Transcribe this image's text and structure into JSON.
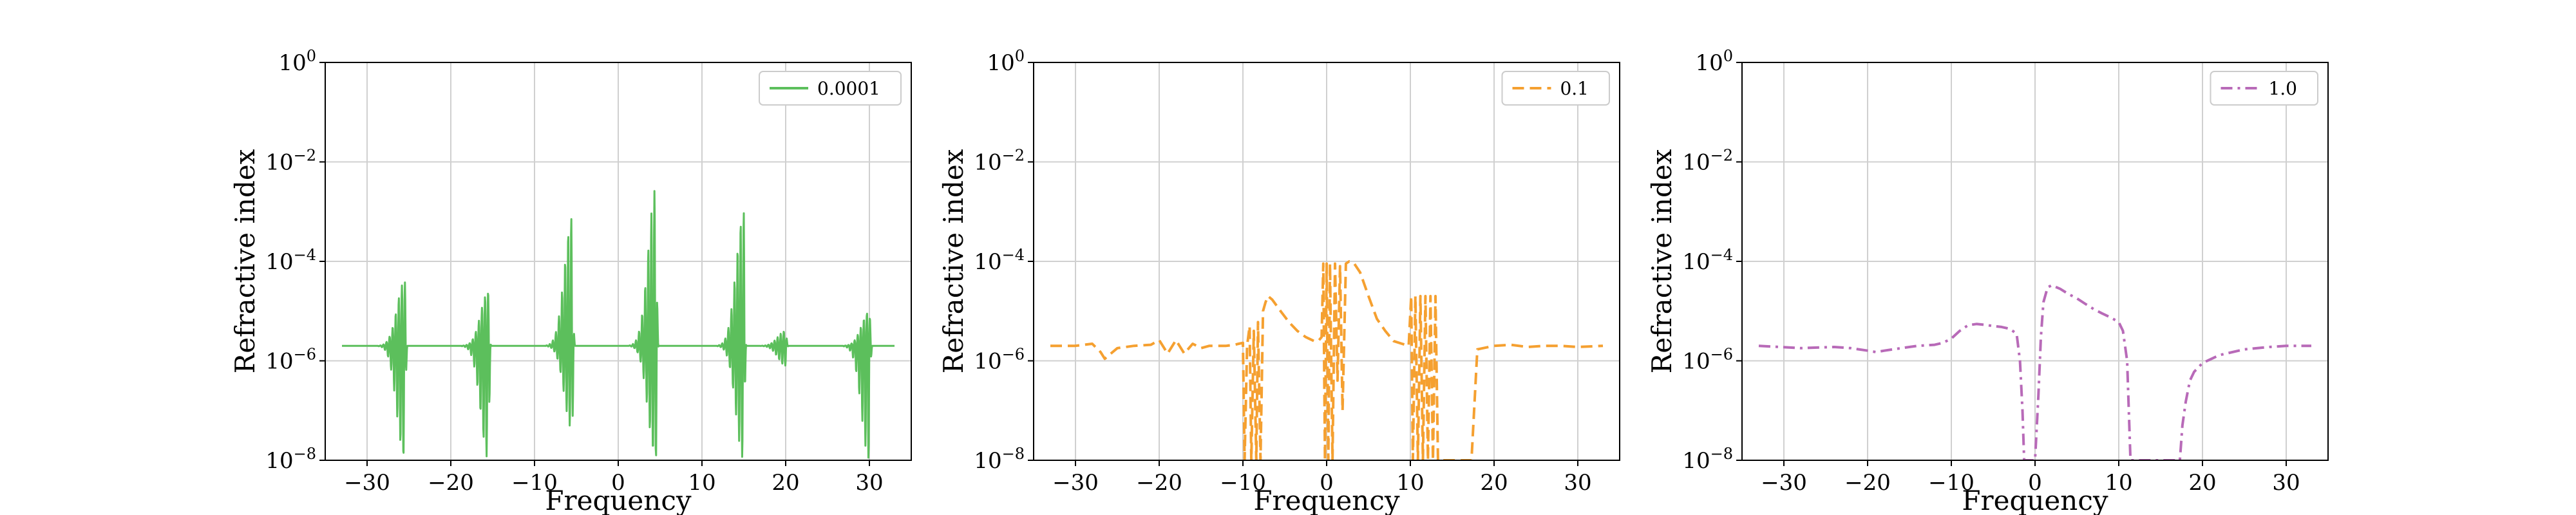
{
  "chart_data": [
    {
      "type": "line",
      "xlabel": "Frequency",
      "ylabel": "Refractive index",
      "xlim": [
        -35,
        35
      ],
      "ylim": [
        1e-08,
        1
      ],
      "yscale": "log",
      "xticks": [
        -30,
        -20,
        -10,
        0,
        10,
        20,
        30
      ],
      "xtick_labels": [
        "−30",
        "−20",
        "−10",
        "0",
        "10",
        "20",
        "30"
      ],
      "ytick_labels": [
        {
          "base": "10",
          "exp": "-8"
        },
        {
          "base": "10",
          "exp": "-6"
        },
        {
          "base": "10",
          "exp": "-4"
        },
        {
          "base": "10",
          "exp": "-2"
        },
        {
          "base": "10",
          "exp": "0"
        }
      ],
      "grid": true,
      "legend_position": "top-right",
      "series": [
        {
          "name": "0.0001",
          "color": "#5cbf5c",
          "linestyle": "solid",
          "baseline": 2e-06,
          "x_range": [
            -33,
            33
          ],
          "resonances": [
            {
              "x": -25.5,
              "peak": 4e-05,
              "dip": 1e-08
            },
            {
              "x": -15.5,
              "peak": 2.5e-05,
              "dip": 1e-08
            },
            {
              "x": -5.5,
              "peak": 0.0008,
              "dip": 4e-08
            },
            {
              "x": 4.5,
              "peak": 0.003,
              "dip": 1e-08
            },
            {
              "x": 15,
              "peak": 0.001,
              "dip": 1e-08
            },
            {
              "x": 20,
              "peak": 4e-06,
              "dip": 8e-07
            },
            {
              "x": 30,
              "peak": 1e-05,
              "dip": 1e-08
            }
          ]
        }
      ]
    },
    {
      "type": "line",
      "xlabel": "Frequency",
      "ylabel": "Refractive index",
      "xlim": [
        -35,
        35
      ],
      "ylim": [
        1e-08,
        1
      ],
      "yscale": "log",
      "xticks": [
        -30,
        -20,
        -10,
        0,
        10,
        20,
        30
      ],
      "xtick_labels": [
        "−30",
        "−20",
        "−10",
        "0",
        "10",
        "20",
        "30"
      ],
      "ytick_labels": [
        {
          "base": "10",
          "exp": "-8"
        },
        {
          "base": "10",
          "exp": "-6"
        },
        {
          "base": "10",
          "exp": "-4"
        },
        {
          "base": "10",
          "exp": "-2"
        },
        {
          "base": "10",
          "exp": "0"
        }
      ],
      "grid": true,
      "legend_position": "top-right",
      "series": [
        {
          "name": "0.1",
          "color": "#f5a030",
          "linestyle": "dashed",
          "x": [
            -33,
            -30,
            -28,
            -27,
            -26.5,
            -26,
            -25,
            -23,
            -21,
            -20,
            -19,
            -18,
            -17,
            -16,
            -15,
            -14,
            -13,
            -12,
            -11,
            -10.5,
            -10,
            -9.8,
            -9.5,
            -9.2,
            -9,
            -8.7,
            -8.4,
            -8.2,
            -7.9,
            -7.6,
            -7.3,
            -7,
            -6.5,
            -5.5,
            -4.5,
            -3.5,
            -2.5,
            -1.5,
            -1,
            -0.6,
            -0.4,
            -0.2,
            0,
            0.2,
            0.4,
            0.7,
            1,
            1.3,
            1.6,
            1.9,
            2.3,
            2.7,
            3.3,
            4,
            5,
            6,
            7,
            8,
            9,
            9.8,
            10.1,
            10.3,
            10.6,
            10.9,
            11.2,
            11.5,
            11.8,
            12.1,
            12.4,
            12.7,
            13,
            13.3,
            14,
            15,
            16.5,
            17.3,
            18,
            20,
            22,
            24,
            26,
            28,
            30,
            33
          ],
          "y": [
            2e-06,
            2e-06,
            2.2e-06,
            1.5e-06,
            1.1e-06,
            1.3e-06,
            1.8e-06,
            2e-06,
            2.1e-06,
            2.6e-06,
            1.4e-06,
            2.6e-06,
            1.4e-06,
            2.2e-06,
            1.8e-06,
            2e-06,
            2e-06,
            2e-06,
            2.1e-06,
            2.2e-06,
            2.3e-06,
            1e-08,
            2e-06,
            5e-06,
            1e-08,
            4e-06,
            1e-08,
            6e-06,
            1e-08,
            1e-05,
            1.5e-05,
            2e-05,
            1.7e-05,
            1e-05,
            6e-06,
            4e-06,
            3e-06,
            2.5e-06,
            2.5e-06,
            3e-06,
            9e-05,
            1e-08,
            9e-05,
            1e-08,
            9e-05,
            1e-08,
            9e-05,
            4e-07,
            8e-05,
            1e-07,
            9e-05,
            0.0001,
            9e-05,
            6e-05,
            2e-05,
            7e-06,
            4e-06,
            2.5e-06,
            2.2e-06,
            2e-06,
            2e-05,
            1e-08,
            2e-05,
            1e-08,
            2e-05,
            1e-08,
            2e-05,
            1e-08,
            2e-05,
            1e-08,
            2e-05,
            1e-08,
            1e-08,
            1e-08,
            1e-08,
            1e-08,
            1.7e-06,
            2e-06,
            2.1e-06,
            1.9e-06,
            2e-06,
            2e-06,
            1.9e-06,
            2e-06
          ]
        }
      ]
    },
    {
      "type": "line",
      "xlabel": "Frequency",
      "ylabel": "Refractive index",
      "xlim": [
        -35,
        35
      ],
      "ylim": [
        1e-08,
        1
      ],
      "yscale": "log",
      "xticks": [
        -30,
        -20,
        -10,
        0,
        10,
        20,
        30
      ],
      "xtick_labels": [
        "−30",
        "−20",
        "−10",
        "0",
        "10",
        "20",
        "30"
      ],
      "ytick_labels": [
        {
          "base": "10",
          "exp": "-8"
        },
        {
          "base": "10",
          "exp": "-6"
        },
        {
          "base": "10",
          "exp": "-4"
        },
        {
          "base": "10",
          "exp": "-2"
        },
        {
          "base": "10",
          "exp": "0"
        }
      ],
      "grid": true,
      "legend_position": "top-right",
      "series": [
        {
          "name": "1.0",
          "color": "#b86ab8",
          "linestyle": "dashdot",
          "x": [
            -33,
            -28,
            -24,
            -22,
            -20,
            -19,
            -18,
            -16,
            -14,
            -12,
            -11,
            -10,
            -9,
            -8,
            -7,
            -6,
            -5,
            -4,
            -3,
            -2.2,
            -1.8,
            -1.5,
            -1.3,
            -1,
            -0.5,
            0,
            0.4,
            0.7,
            1,
            1.5,
            2,
            3,
            4,
            5,
            6,
            7,
            8,
            9,
            10,
            10.5,
            11,
            11.2,
            11.4,
            17.3,
            17.6,
            18,
            18.5,
            19,
            20,
            22,
            25,
            28,
            30,
            33
          ],
          "y": [
            2e-06,
            1.8e-06,
            1.9e-06,
            1.8e-06,
            1.6e-06,
            1.5e-06,
            1.6e-06,
            1.8e-06,
            2e-06,
            2.1e-06,
            2.3e-06,
            2.8e-06,
            4e-06,
            5.2e-06,
            5.5e-06,
            5.3e-06,
            5e-06,
            4.8e-06,
            4.4e-06,
            3.5e-06,
            1e-06,
            1e-07,
            1e-08,
            1e-08,
            1e-08,
            1e-08,
            2e-07,
            3e-06,
            1.5e-05,
            3e-05,
            3.3e-05,
            2.8e-05,
            2.2e-05,
            1.8e-05,
            1.4e-05,
            1.1e-05,
            9e-06,
            7.5e-06,
            6e-06,
            4e-06,
            1e-06,
            1e-07,
            1e-08,
            1e-08,
            5e-08,
            1.5e-07,
            4e-07,
            6e-07,
            9e-07,
            1.3e-06,
            1.7e-06,
            1.9e-06,
            2e-06,
            2e-06
          ]
        }
      ]
    }
  ]
}
